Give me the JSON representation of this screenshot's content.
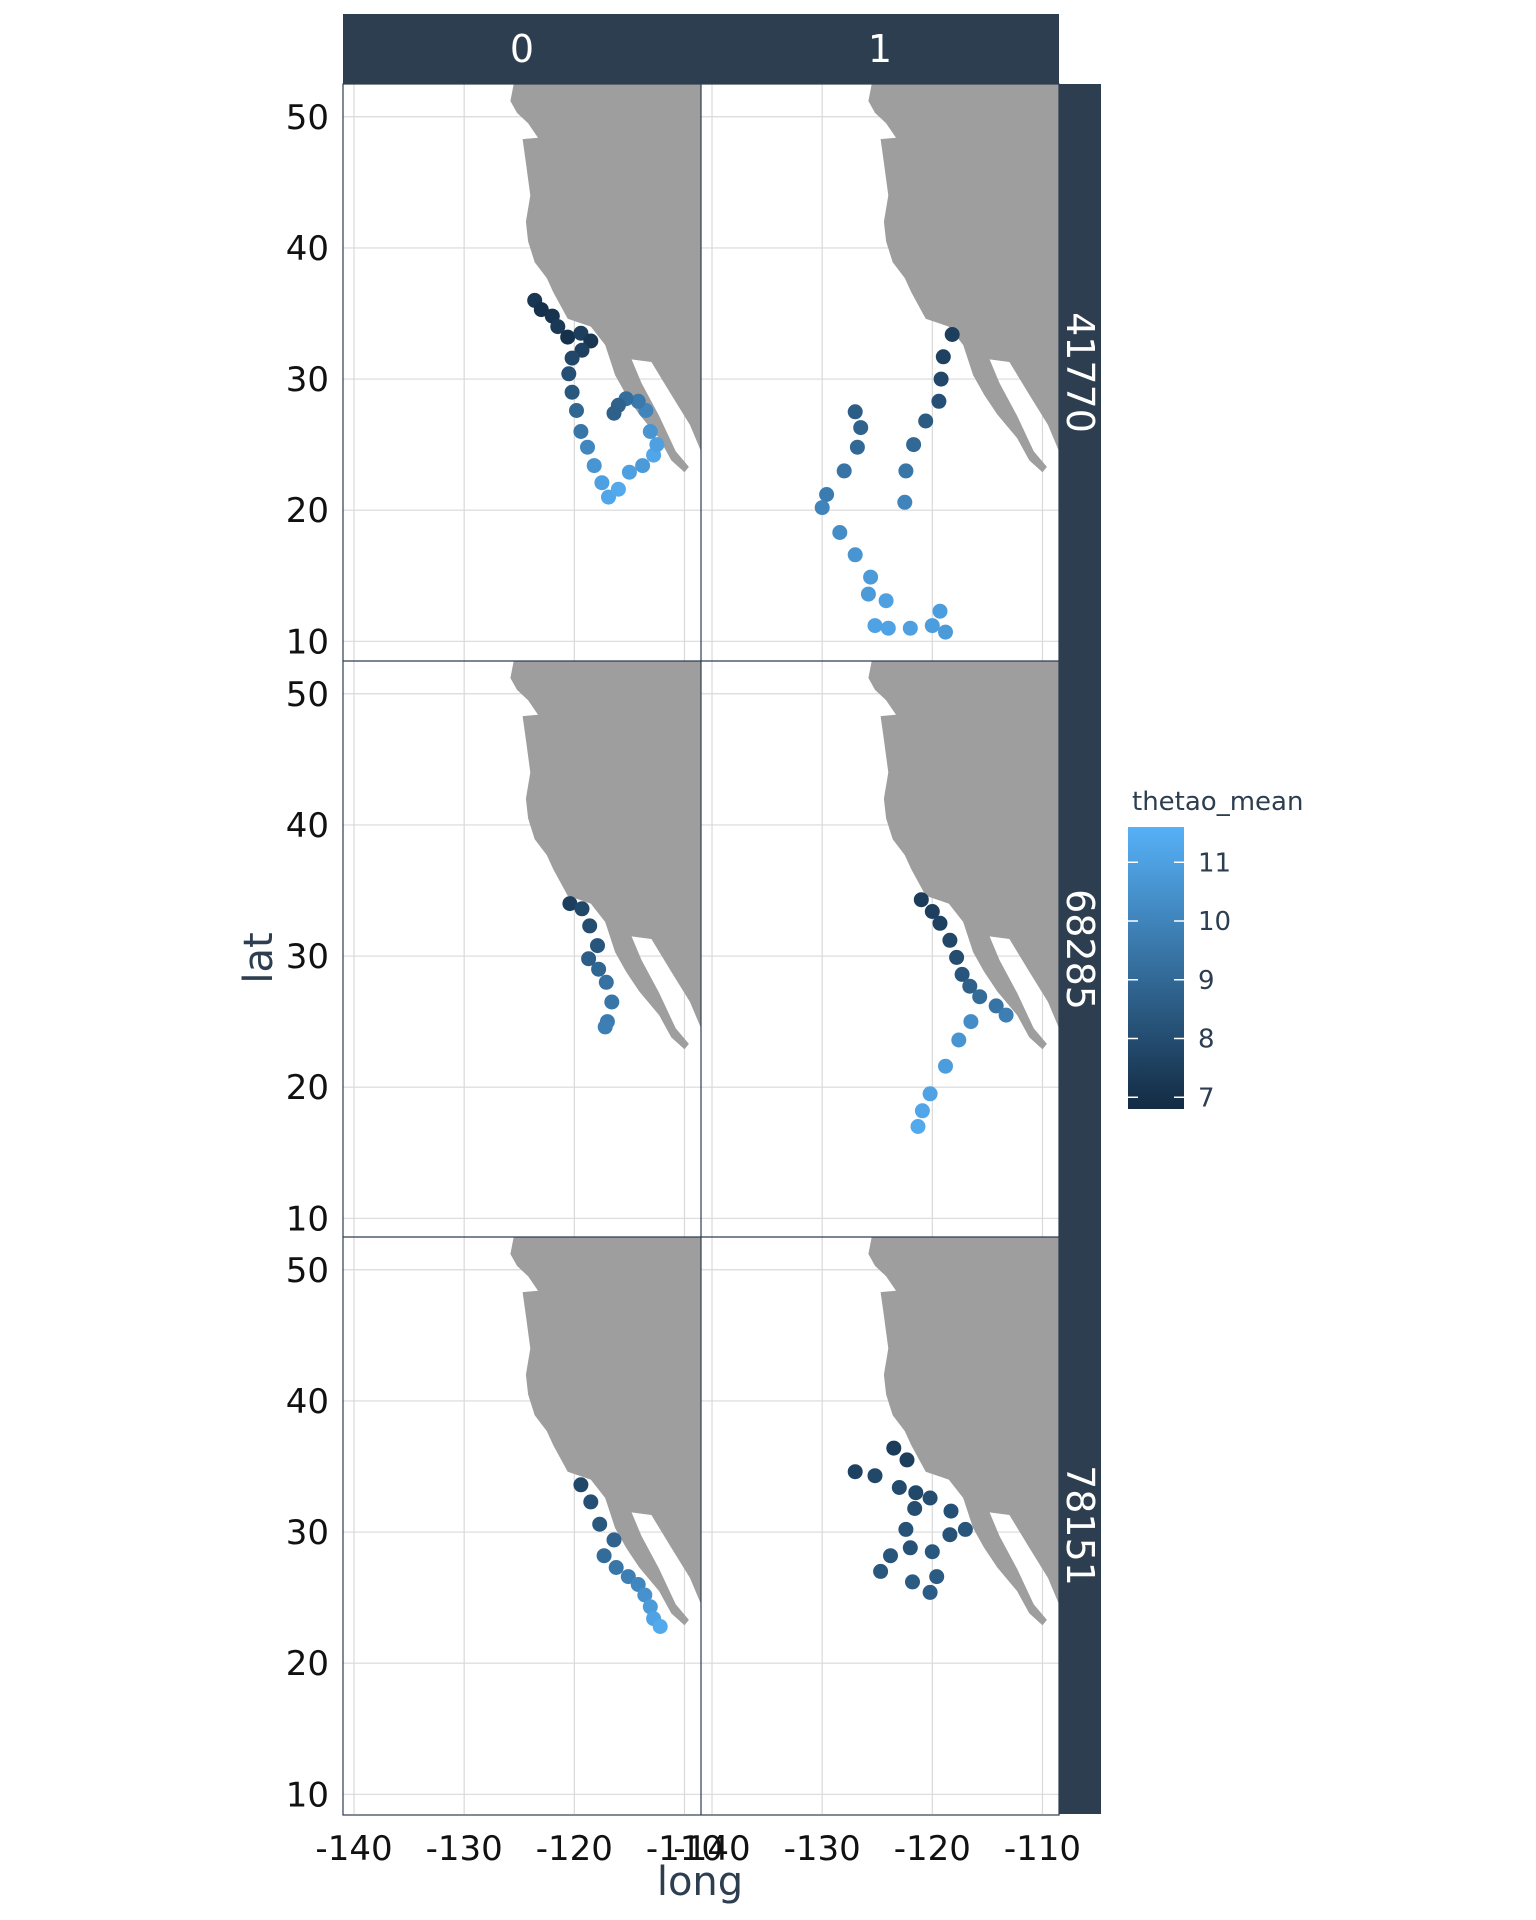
{
  "chart_data": {
    "type": "scatter",
    "xlabel": "long",
    "ylabel": "lat",
    "xlim": [
      -141,
      -108.5
    ],
    "ylim": [
      8.5,
      52.5
    ],
    "x_ticks": [
      -140,
      -130,
      -120,
      -110
    ],
    "x_tick_labels": [
      "-140",
      "-130",
      "-120",
      "-110"
    ],
    "y_ticks": [
      10,
      20,
      30,
      40,
      50
    ],
    "y_tick_labels": [
      "10",
      "20",
      "30",
      "40",
      "50"
    ],
    "grid": true,
    "facet_cols": [
      "0",
      "1"
    ],
    "facet_rows": [
      "41770",
      "68285",
      "78151"
    ],
    "color_scale": {
      "title": "thetao_mean",
      "min": 6.8,
      "max": 11.6,
      "low_color": "#132B43",
      "high_color": "#56B1F7",
      "breaks": [
        7,
        8,
        9,
        10,
        11
      ],
      "break_labels": [
        "7",
        "8",
        "9",
        "10",
        "11"
      ]
    },
    "land_color": "#9e9e9e",
    "strip_color": "#2d3e50",
    "coastline": [
      [
        -125.5,
        52.5
      ],
      [
        -125.8,
        51.2
      ],
      [
        -125.2,
        50.3
      ],
      [
        -124.2,
        49.5
      ],
      [
        -123.3,
        48.4
      ],
      [
        -124.7,
        48.3
      ],
      [
        -124.4,
        46.5
      ],
      [
        -124.0,
        44.0
      ],
      [
        -124.4,
        42.0
      ],
      [
        -124.2,
        40.5
      ],
      [
        -123.6,
        38.9
      ],
      [
        -122.5,
        37.7
      ],
      [
        -121.9,
        36.6
      ],
      [
        -120.6,
        34.6
      ],
      [
        -118.5,
        34.0
      ],
      [
        -117.2,
        32.6
      ],
      [
        -116.3,
        30.3
      ],
      [
        -115.3,
        28.8
      ],
      [
        -114.1,
        27.3
      ],
      [
        -112.3,
        25.5
      ],
      [
        -111.2,
        23.8
      ],
      [
        -110.0,
        22.9
      ],
      [
        -109.6,
        23.3
      ],
      [
        -110.8,
        24.5
      ],
      [
        -112.3,
        27.2
      ],
      [
        -113.9,
        29.7
      ],
      [
        -114.8,
        31.5
      ],
      [
        -113.0,
        31.3
      ],
      [
        -111.2,
        28.8
      ],
      [
        -109.5,
        26.5
      ],
      [
        -108.5,
        24.5
      ],
      [
        -108.5,
        52.5
      ]
    ],
    "panels": [
      {
        "row": "41770",
        "col": "0",
        "points": [
          [
            -123.6,
            36.0,
            7.2
          ],
          [
            -123.0,
            35.3,
            7.0
          ],
          [
            -122.0,
            34.8,
            7.1
          ],
          [
            -121.5,
            34.0,
            7.3
          ],
          [
            -120.6,
            33.2,
            7.0
          ],
          [
            -119.4,
            33.5,
            7.5
          ],
          [
            -118.5,
            32.9,
            7.2
          ],
          [
            -119.3,
            32.2,
            7.6
          ],
          [
            -120.2,
            31.6,
            7.8
          ],
          [
            -120.5,
            30.4,
            8.1
          ],
          [
            -120.2,
            29.0,
            8.4
          ],
          [
            -119.8,
            27.6,
            8.9
          ],
          [
            -119.4,
            26.0,
            9.5
          ],
          [
            -118.8,
            24.8,
            10.1
          ],
          [
            -118.2,
            23.4,
            10.6
          ],
          [
            -117.5,
            22.1,
            11.0
          ],
          [
            -116.9,
            21.0,
            11.2
          ],
          [
            -116.0,
            21.6,
            11.3
          ],
          [
            -115.0,
            22.9,
            11.0
          ],
          [
            -113.8,
            23.4,
            10.8
          ],
          [
            -112.8,
            24.2,
            11.2
          ],
          [
            -112.5,
            25.0,
            11.0
          ],
          [
            -113.1,
            26.0,
            10.6
          ],
          [
            -113.5,
            27.6,
            10.0
          ],
          [
            -114.2,
            28.3,
            9.6
          ],
          [
            -115.3,
            28.5,
            9.2
          ],
          [
            -116.0,
            28.0,
            8.8
          ],
          [
            -116.4,
            27.4,
            8.7
          ]
        ]
      },
      {
        "row": "41770",
        "col": "1",
        "points": [
          [
            -118.2,
            33.4,
            7.5
          ],
          [
            -119.0,
            31.7,
            7.6
          ],
          [
            -119.2,
            30.0,
            7.8
          ],
          [
            -119.4,
            28.3,
            8.1
          ],
          [
            -120.6,
            26.8,
            8.5
          ],
          [
            -121.7,
            25.0,
            9.0
          ],
          [
            -122.4,
            23.0,
            9.5
          ],
          [
            -122.5,
            20.6,
            10.0
          ],
          [
            -127.0,
            27.5,
            8.6
          ],
          [
            -126.5,
            26.3,
            8.8
          ],
          [
            -126.8,
            24.8,
            9.0
          ],
          [
            -128.0,
            23.0,
            9.4
          ],
          [
            -129.6,
            21.2,
            9.7
          ],
          [
            -130.0,
            20.2,
            10.0
          ],
          [
            -128.4,
            18.3,
            10.3
          ],
          [
            -127.0,
            16.6,
            10.6
          ],
          [
            -125.6,
            14.9,
            10.8
          ],
          [
            -124.2,
            13.1,
            11.0
          ],
          [
            -124.0,
            11.0,
            11.1
          ],
          [
            -122.0,
            11.0,
            11.0
          ],
          [
            -120.0,
            11.2,
            10.9
          ],
          [
            -118.8,
            10.7,
            10.8
          ],
          [
            -119.3,
            12.3,
            10.9
          ],
          [
            -125.8,
            13.6,
            10.8
          ],
          [
            -125.2,
            11.2,
            11.1
          ]
        ]
      },
      {
        "row": "68285",
        "col": "0",
        "points": [
          [
            -120.4,
            34.0,
            7.5
          ],
          [
            -119.3,
            33.6,
            7.8
          ],
          [
            -118.6,
            32.3,
            8.0
          ],
          [
            -117.9,
            30.8,
            8.3
          ],
          [
            -118.7,
            29.8,
            8.6
          ],
          [
            -117.8,
            29.0,
            8.9
          ],
          [
            -117.1,
            28.0,
            9.3
          ],
          [
            -116.6,
            26.5,
            9.5
          ],
          [
            -117.0,
            25.0,
            9.7
          ],
          [
            -117.2,
            24.6,
            9.8
          ]
        ]
      },
      {
        "row": "68285",
        "col": "1",
        "points": [
          [
            -121.0,
            34.3,
            7.4
          ],
          [
            -120.0,
            33.4,
            7.5
          ],
          [
            -119.3,
            32.5,
            7.6
          ],
          [
            -118.4,
            31.2,
            7.8
          ],
          [
            -117.8,
            29.9,
            8.0
          ],
          [
            -117.3,
            28.6,
            8.3
          ],
          [
            -116.6,
            27.7,
            8.7
          ],
          [
            -115.7,
            26.9,
            9.1
          ],
          [
            -114.2,
            26.2,
            9.4
          ],
          [
            -113.3,
            25.5,
            9.8
          ],
          [
            -116.5,
            25.0,
            10.3
          ],
          [
            -117.6,
            23.6,
            10.6
          ],
          [
            -118.8,
            21.6,
            10.9
          ],
          [
            -120.2,
            19.5,
            11.1
          ],
          [
            -120.9,
            18.2,
            11.2
          ],
          [
            -121.3,
            17.0,
            11.3
          ]
        ]
      },
      {
        "row": "78151",
        "col": "0",
        "points": [
          [
            -119.4,
            33.6,
            7.8
          ],
          [
            -118.5,
            32.3,
            8.1
          ],
          [
            -117.7,
            30.6,
            8.4
          ],
          [
            -116.4,
            29.4,
            8.8
          ],
          [
            -117.3,
            28.2,
            9.1
          ],
          [
            -116.2,
            27.3,
            9.5
          ],
          [
            -115.1,
            26.6,
            9.8
          ],
          [
            -114.2,
            26.0,
            10.1
          ],
          [
            -113.6,
            25.2,
            10.5
          ],
          [
            -113.1,
            24.3,
            10.8
          ],
          [
            -112.8,
            23.4,
            11.1
          ],
          [
            -112.2,
            22.8,
            11.3
          ]
        ]
      },
      {
        "row": "78151",
        "col": "1",
        "points": [
          [
            -127.0,
            34.6,
            7.6
          ],
          [
            -125.2,
            34.3,
            7.8
          ],
          [
            -123.5,
            36.4,
            7.4
          ],
          [
            -122.3,
            35.5,
            7.5
          ],
          [
            -123.0,
            33.4,
            7.9
          ],
          [
            -121.5,
            33.0,
            7.8
          ],
          [
            -120.2,
            32.6,
            8.0
          ],
          [
            -118.3,
            31.6,
            8.1
          ],
          [
            -117.0,
            30.2,
            8.3
          ],
          [
            -118.4,
            29.8,
            8.2
          ],
          [
            -120.0,
            28.5,
            8.4
          ],
          [
            -122.0,
            28.8,
            8.2
          ],
          [
            -123.8,
            28.2,
            8.3
          ],
          [
            -124.7,
            27.0,
            8.4
          ],
          [
            -121.8,
            26.2,
            8.5
          ],
          [
            -120.2,
            25.4,
            8.6
          ],
          [
            -119.6,
            26.6,
            8.5
          ],
          [
            -121.6,
            31.8,
            8.0
          ],
          [
            -122.4,
            30.2,
            8.2
          ]
        ]
      }
    ]
  }
}
